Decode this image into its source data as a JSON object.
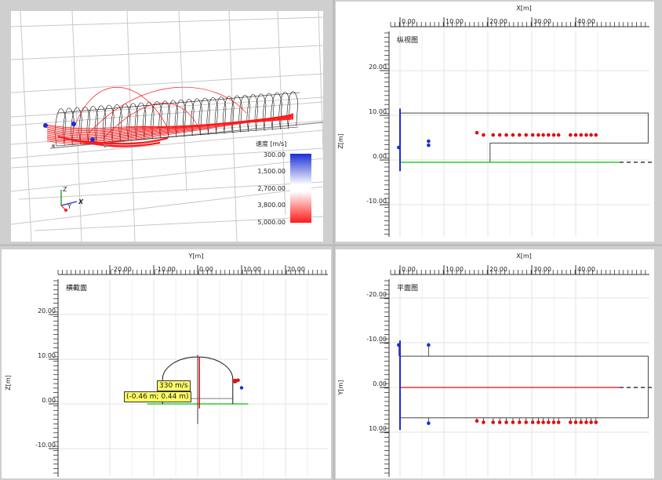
{
  "view3d": {
    "legend_title": "速度 [m/s]",
    "legend_ticks": [
      "300.00",
      "1,500.00",
      "2,700.00",
      "3,800.00",
      "5,000.00"
    ],
    "axis_labels": {
      "z": "Z",
      "y": "Y",
      "x": "X"
    },
    "colors": {
      "high": "#1a2fd6",
      "low": "#ff1a1a"
    }
  },
  "longitudinal": {
    "title": "纵视图",
    "x_axis_title": "X[m]",
    "y_axis_title": "Z[m]",
    "x_ticks": [
      "0.00",
      "10.00",
      "20.00",
      "30.00",
      "40.00"
    ],
    "y_ticks": [
      "20.00",
      "10.00",
      "0.00",
      "-10.00"
    ],
    "x_tick_values": [
      0,
      10,
      20,
      30,
      40
    ],
    "y_tick_values": [
      20,
      10,
      0,
      -10
    ],
    "blue_points": [
      [
        -0.3,
        2.8
      ],
      [
        6.5,
        4.2
      ],
      [
        6.5,
        3.3
      ]
    ],
    "red_points_x": [
      17.5,
      19.0,
      21.2,
      22.7,
      24.2,
      25.7,
      27.2,
      28.7,
      30.2,
      31.5,
      32.6,
      33.8,
      35.0,
      36.1,
      38.8,
      40.0,
      41.2,
      42.4,
      43.5,
      44.6
    ],
    "red_points_z": 5.6,
    "tunnel_length": 39.5
  },
  "cross_section": {
    "title": "横截面",
    "x_axis_title": "Y[m]",
    "y_axis_title": "Z[m]",
    "x_ticks": [
      "-20.00",
      "-10.00",
      "0.00",
      "10.00",
      "20.00"
    ],
    "y_ticks": [
      "20.00",
      "10.00",
      "0.00",
      "-10.00"
    ],
    "x_tick_values": [
      -20,
      -10,
      0,
      10,
      20
    ],
    "y_tick_values": [
      20,
      10,
      0,
      -10
    ],
    "tooltip_speed": "330 m/s",
    "tooltip_coords": "(-0.46 m; 0.44 m)"
  },
  "plan": {
    "title": "平面图",
    "x_axis_title": "X[m]",
    "y_axis_title": "Y[m]",
    "x_ticks": [
      "0.00",
      "10.00",
      "20.00",
      "30.00",
      "40.00"
    ],
    "y_ticks": [
      "-20.00",
      "-10.00",
      "0.00",
      "10.00"
    ],
    "x_tick_values": [
      0,
      10,
      20,
      30,
      40
    ],
    "y_tick_values": [
      -20,
      -10,
      0,
      10
    ],
    "blue_points": [
      [
        -0.3,
        -9.5
      ],
      [
        6.5,
        -9.5
      ],
      [
        6.5,
        8.0
      ]
    ],
    "red_points_x": [
      17.5,
      19.0,
      21.2,
      22.7,
      24.2,
      25.7,
      27.2,
      28.7,
      30.2,
      31.5,
      32.6,
      33.8,
      35.0,
      36.1,
      38.8,
      40.0,
      41.2,
      42.4,
      43.5,
      44.6
    ],
    "red_points_y": 7.5,
    "tunnel_length": 39.5
  }
}
